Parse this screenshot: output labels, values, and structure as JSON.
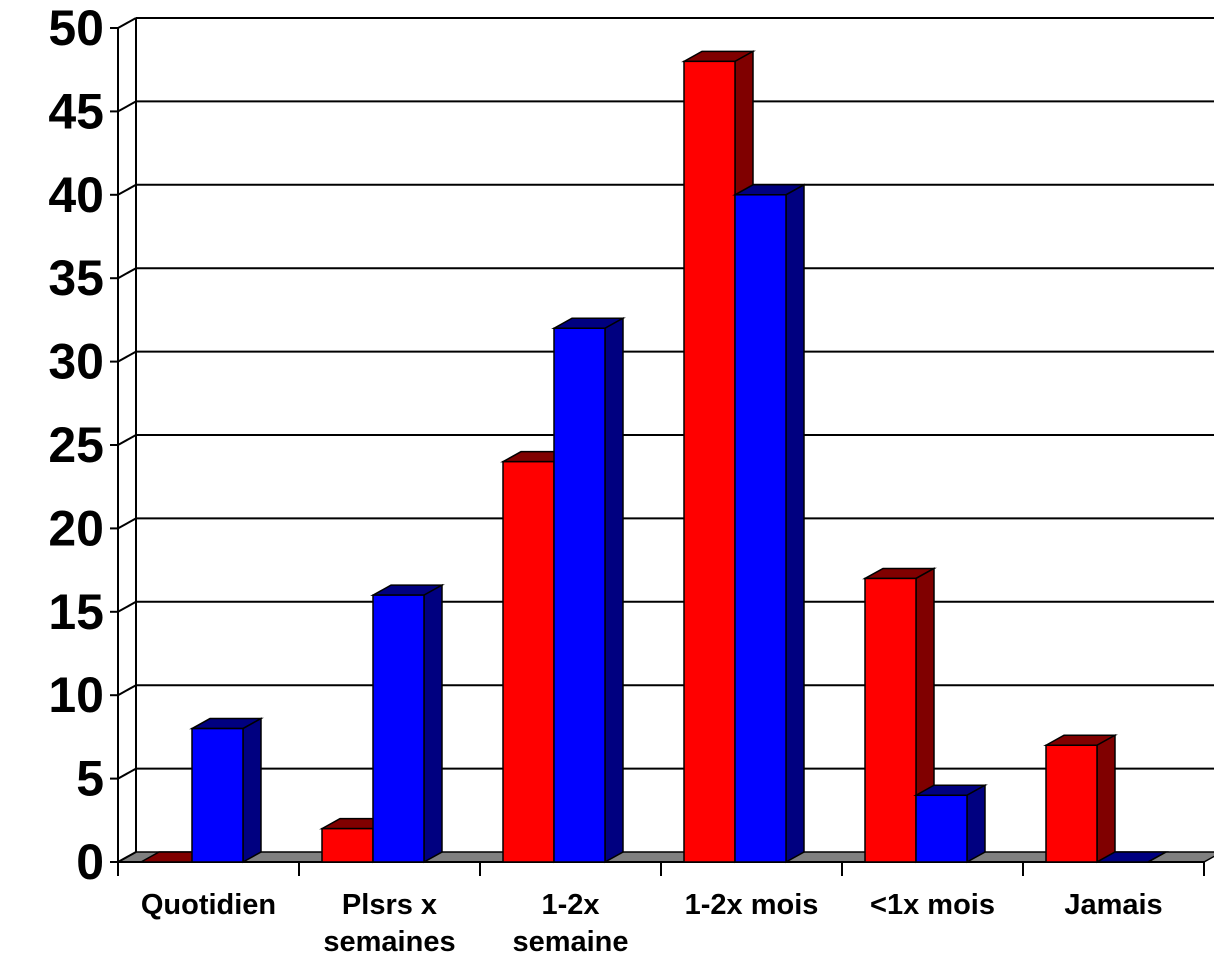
{
  "chart_data": {
    "type": "bar",
    "style": "3d-clustered-column",
    "categories": [
      [
        "Quotidien"
      ],
      [
        "Plsrs x",
        "semaines"
      ],
      [
        "1-2x",
        "semaine"
      ],
      [
        "1-2x mois"
      ],
      [
        "<1x mois"
      ],
      [
        "Jamais"
      ]
    ],
    "series": [
      {
        "values": [
          0,
          2,
          24,
          48,
          17,
          7
        ],
        "color": "#ff0000",
        "side_color": "#800000"
      },
      {
        "values": [
          8,
          16,
          32,
          40,
          4,
          0
        ],
        "color": "#0000ff",
        "side_color": "#000080"
      }
    ],
    "ylim": [
      0,
      50
    ],
    "yticks": [
      "0",
      "5",
      "10",
      "15",
      "20",
      "25",
      "30",
      "35",
      "40",
      "45",
      "50"
    ],
    "grid": true,
    "floor_color": "#808080",
    "legend": "none"
  }
}
